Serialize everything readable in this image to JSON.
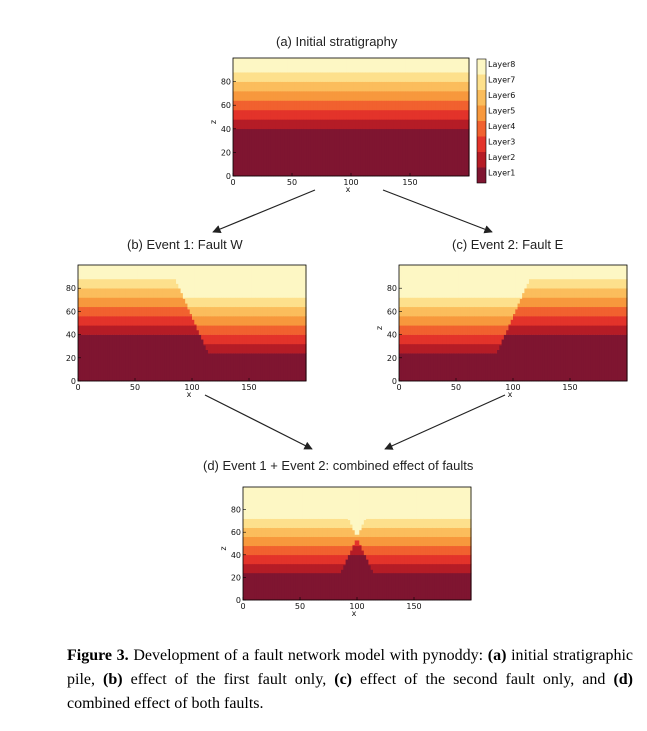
{
  "layer_colors": [
    "#7f1530",
    "#b51c26",
    "#e3332a",
    "#f1612f",
    "#f7983d",
    "#fbbd5c",
    "#fde08c",
    "#fdf7c4"
  ],
  "legend": [
    "Layer8",
    "Layer7",
    "Layer6",
    "Layer5",
    "Layer4",
    "Layer3",
    "Layer2",
    "Layer1"
  ],
  "panels": [
    {
      "title": "(a) Initial stratigraphy",
      "faults": []
    },
    {
      "title": "(b) Event 1: Fault W",
      "faults": [
        "W"
      ]
    },
    {
      "title": "(c) Event 2: Fault E",
      "faults": [
        "E"
      ]
    },
    {
      "title": "(d) Event 1 + Event 2: combined effect of faults",
      "faults": [
        "W",
        "E"
      ]
    }
  ],
  "axes": {
    "xlabel": "x",
    "ylabel": "z",
    "xticks": [
      "0",
      "50",
      "100",
      "150"
    ],
    "yticks": [
      "0",
      "20",
      "40",
      "60",
      "80"
    ],
    "xlim": [
      0,
      200
    ],
    "ylim": [
      0,
      100
    ]
  },
  "chart_data": {
    "type": "heatmap",
    "layer_tops": [
      40,
      48,
      56,
      64,
      72,
      80,
      88,
      100
    ],
    "fault_W": {
      "x_top": 80,
      "x_bottom": 125,
      "down_side": "east",
      "throw": 16
    },
    "fault_E": {
      "x_top": 120,
      "x_bottom": 75,
      "down_side": "west",
      "throw": 16
    }
  },
  "caption": {
    "label": "Figure 3.",
    "t1": " Development of a fault network model with pynoddy: ",
    "a": "(a)",
    "t2": " initial stratigraphic pile, ",
    "b": "(b)",
    "t3": " effect of the first fault only, ",
    "c": "(c)",
    "t4": " effect of the second fault only, and ",
    "d": "(d)",
    "t5": " combined effect of both faults."
  }
}
